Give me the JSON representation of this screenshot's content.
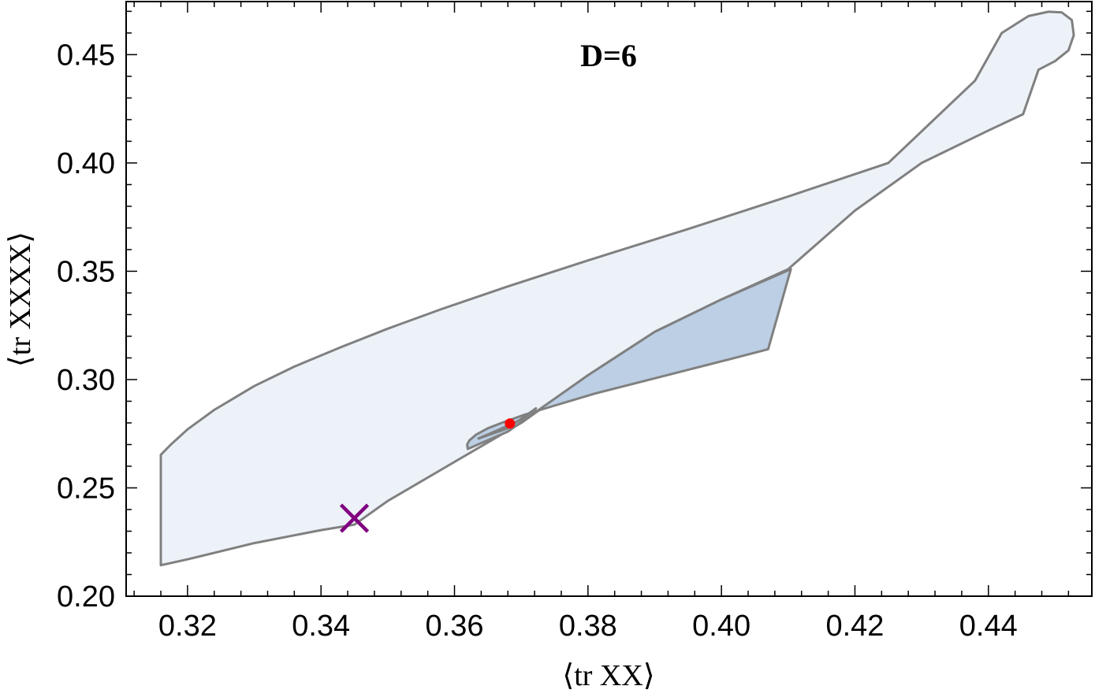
{
  "chart_data": {
    "type": "area",
    "title": "D=6",
    "xlabel": "⟨tr XX⟩",
    "ylabel": "⟨tr XXXX⟩",
    "xlim": [
      0.3108,
      0.4555
    ],
    "ylim": [
      0.2,
      0.4745
    ],
    "xticks": [
      0.32,
      0.34,
      0.36,
      0.38,
      0.4,
      0.42,
      0.44
    ],
    "xtick_labels": [
      "0.32",
      "0.34",
      "0.36",
      "0.38",
      "0.40",
      "0.42",
      "0.44"
    ],
    "yticks": [
      0.2,
      0.25,
      0.3,
      0.35,
      0.4,
      0.45
    ],
    "ytick_labels": [
      "0.20",
      "0.25",
      "0.30",
      "0.35",
      "0.40",
      "0.45"
    ],
    "grid": false,
    "colors": {
      "outer_fill": "#edf2f9",
      "middle_fill": "#bccfe4",
      "inner_fill": "#8fa9c4",
      "boundary": "#808080",
      "point": "#ff0000",
      "cross": "#800080"
    },
    "regions": [
      {
        "name": "outer",
        "points": [
          [
            0.316,
            0.2143
          ],
          [
            0.316,
            0.2653
          ],
          [
            0.3175,
            0.27
          ],
          [
            0.32,
            0.277
          ],
          [
            0.324,
            0.286
          ],
          [
            0.33,
            0.297
          ],
          [
            0.336,
            0.306
          ],
          [
            0.343,
            0.315
          ],
          [
            0.35,
            0.3235
          ],
          [
            0.358,
            0.3325
          ],
          [
            0.368,
            0.343
          ],
          [
            0.38,
            0.355
          ],
          [
            0.395,
            0.3695
          ],
          [
            0.41,
            0.3845
          ],
          [
            0.425,
            0.4
          ],
          [
            0.438,
            0.438
          ],
          [
            0.442,
            0.46
          ],
          [
            0.446,
            0.4678
          ],
          [
            0.449,
            0.4698
          ],
          [
            0.451,
            0.4695
          ],
          [
            0.4525,
            0.466
          ],
          [
            0.4528,
            0.459
          ],
          [
            0.452,
            0.452
          ],
          [
            0.45,
            0.447
          ],
          [
            0.4475,
            0.443
          ],
          [
            0.4452,
            0.4225
          ],
          [
            0.44,
            0.415
          ],
          [
            0.43,
            0.4
          ],
          [
            0.42,
            0.378
          ],
          [
            0.41,
            0.351
          ],
          [
            0.4,
            0.337
          ],
          [
            0.39,
            0.322
          ],
          [
            0.38,
            0.302
          ],
          [
            0.37,
            0.28
          ],
          [
            0.36,
            0.262
          ],
          [
            0.35,
            0.244
          ],
          [
            0.345,
            0.233
          ],
          [
            0.34,
            0.2305
          ],
          [
            0.33,
            0.2245
          ],
          [
            0.32,
            0.217
          ],
          [
            0.316,
            0.2143
          ]
        ]
      },
      {
        "name": "middle",
        "points": [
          [
            0.368,
            0.276
          ],
          [
            0.362,
            0.268
          ],
          [
            0.3619,
            0.27
          ],
          [
            0.3622,
            0.2718
          ],
          [
            0.3632,
            0.2745
          ],
          [
            0.365,
            0.2775
          ],
          [
            0.3675,
            0.2805
          ],
          [
            0.3705,
            0.2838
          ],
          [
            0.375,
            0.288
          ],
          [
            0.381,
            0.2935
          ],
          [
            0.388,
            0.299
          ],
          [
            0.395,
            0.3045
          ],
          [
            0.402,
            0.31
          ],
          [
            0.407,
            0.314
          ],
          [
            0.4104,
            0.351
          ],
          [
            0.4,
            0.337
          ],
          [
            0.39,
            0.322
          ],
          [
            0.38,
            0.302
          ],
          [
            0.368,
            0.276
          ]
        ]
      },
      {
        "name": "inner",
        "points": [
          [
            0.3636,
            0.2728
          ],
          [
            0.368,
            0.2775
          ],
          [
            0.3722,
            0.2867
          ],
          [
            0.37,
            0.2815
          ],
          [
            0.366,
            0.276
          ],
          [
            0.3636,
            0.2728
          ]
        ]
      }
    ],
    "points": [
      {
        "name": "red-point",
        "marker": "dot",
        "x": 0.3683,
        "y": 0.2797
      },
      {
        "name": "purple-cross",
        "marker": "x",
        "x": 0.345,
        "y": 0.236
      }
    ]
  }
}
